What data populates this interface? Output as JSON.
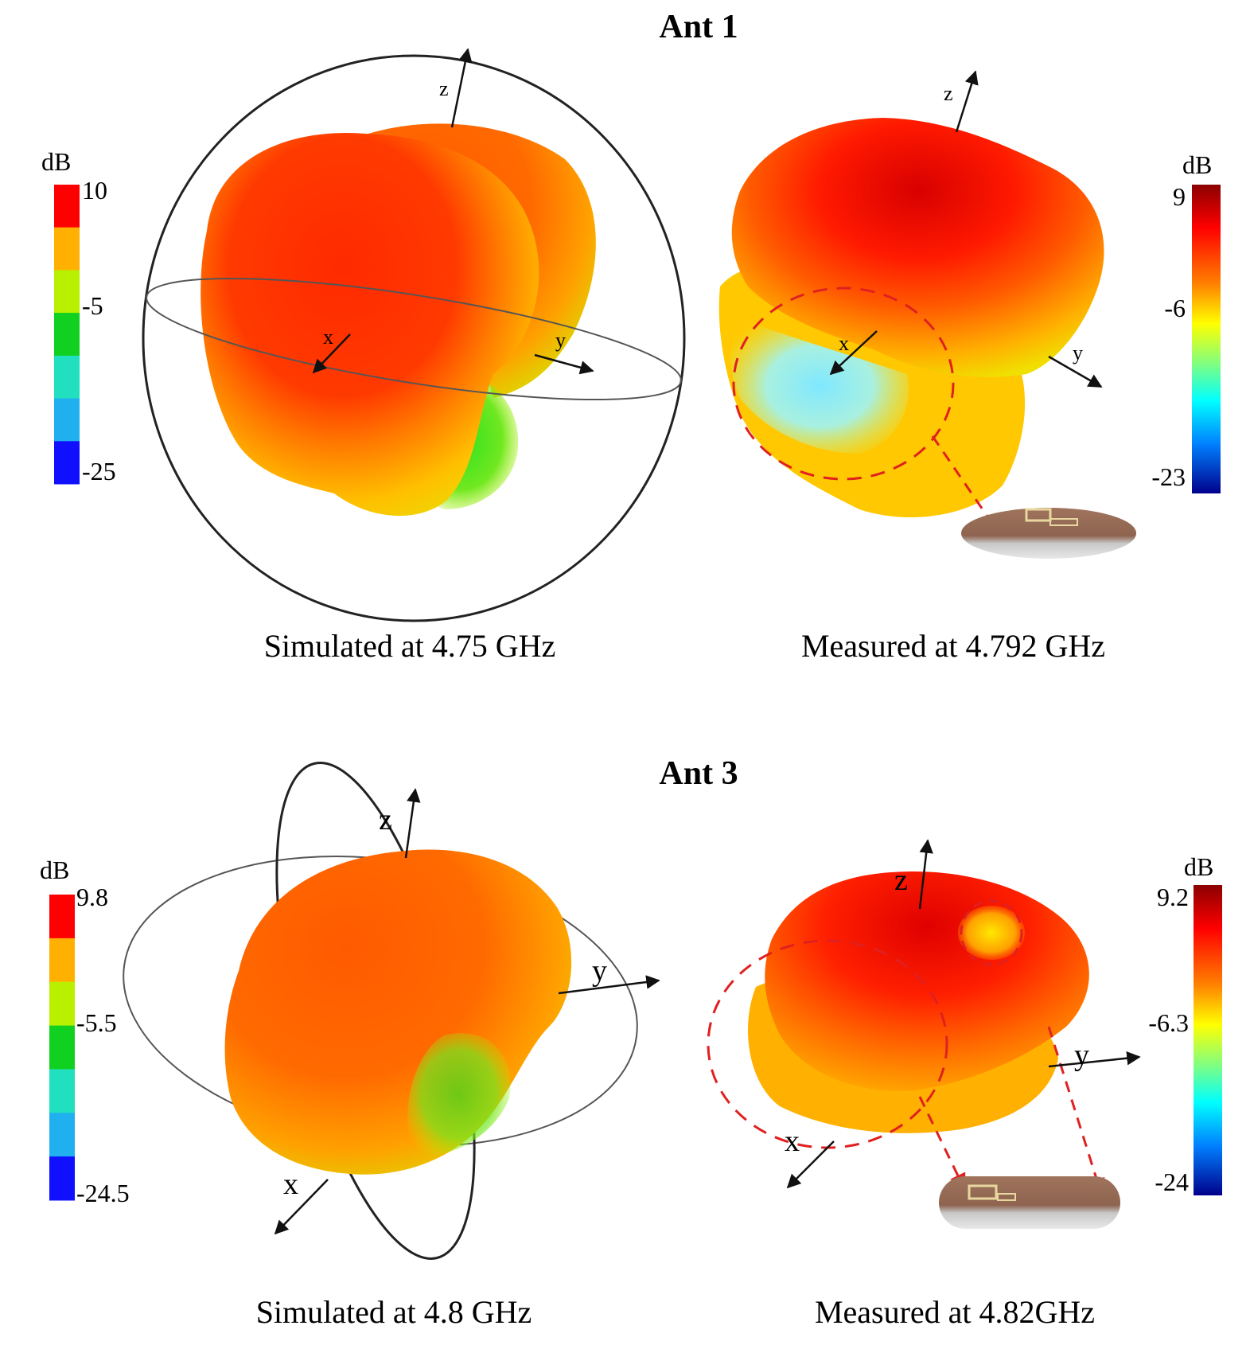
{
  "panels": {
    "ant1": {
      "title": "Ant 1",
      "simulated": {
        "caption": "Simulated at 4.75 GHz",
        "unit": "dB",
        "ticks": [
          "10",
          "-5",
          "-25"
        ],
        "axes": [
          "x",
          "y",
          "z"
        ]
      },
      "measured": {
        "caption": "Measured at 4.792 GHz",
        "unit": "dB",
        "ticks": [
          "9",
          "-6",
          "-23"
        ],
        "axes": [
          "x",
          "y",
          "z"
        ]
      }
    },
    "ant3": {
      "title": "Ant 3",
      "simulated": {
        "caption": "Simulated at 4.8 GHz",
        "unit": "dB",
        "ticks": [
          "9.8",
          "-5.5",
          "-24.5"
        ],
        "axes": [
          "x",
          "y",
          "z"
        ]
      },
      "measured": {
        "caption": "Measured at 4.82GHz",
        "unit": "dB",
        "ticks": [
          "9.2",
          "-6.3",
          "-24"
        ],
        "axes": [
          "x",
          "y",
          "z"
        ]
      }
    }
  },
  "colors": {
    "discrete_scale": [
      "#ff0000",
      "#ffb000",
      "#b8f000",
      "#10d020",
      "#20e0c0",
      "#20b0f0",
      "#1010ff"
    ],
    "continuous_scale": [
      "#8b0000",
      "#ff0000",
      "#ff8000",
      "#ffff00",
      "#80ff80",
      "#00ffff",
      "#0080ff",
      "#00008b"
    ],
    "highlight": "#e02020"
  }
}
